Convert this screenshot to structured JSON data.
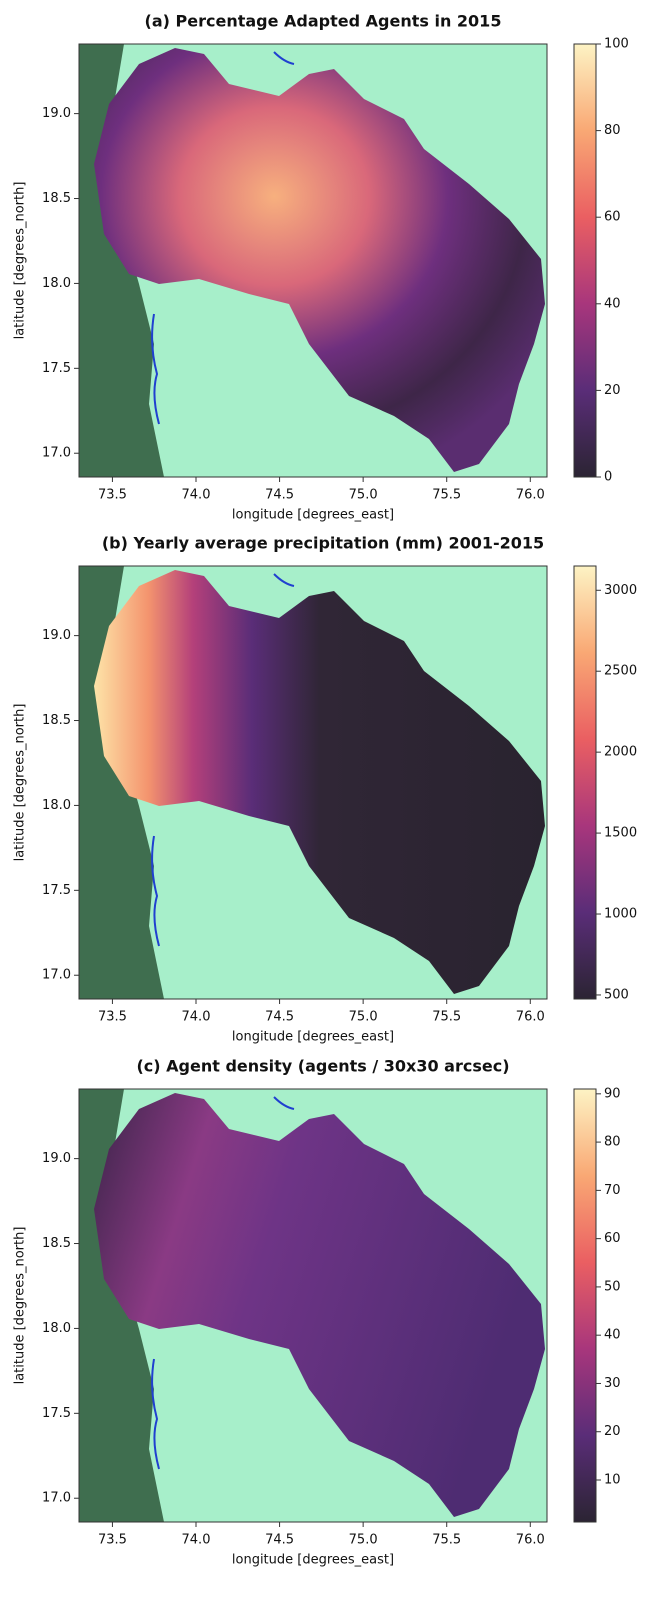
{
  "chart_data": [
    {
      "type": "map",
      "title": "(a) Percentage Adapted Agents in 2015",
      "x_label": "longitude [degrees_east]",
      "y_label": "latitude [degrees_north]",
      "xlim": [
        73.3,
        76.1
      ],
      "ylim": [
        16.86,
        19.41
      ],
      "xticks": [
        73.5,
        {
          "value": 74,
          "label": "74.0"
        },
        74.5,
        {
          "value": 75,
          "label": "75.0"
        },
        75.5,
        {
          "value": 76,
          "label": "76.0"
        }
      ],
      "yticks": [
        {
          "value": 17,
          "label": "17.0"
        },
        17.5,
        {
          "value": 18,
          "label": "18.0"
        },
        18.5,
        {
          "value": 19,
          "label": "19.0"
        }
      ],
      "colorbar": {
        "lim": [
          0,
          100
        ],
        "ticks": [
          0,
          20,
          40,
          60,
          80,
          100
        ]
      },
      "colormap": [
        "#2b2433",
        "#5a2d78",
        "#a8367c",
        "#ea5f62",
        "#f9a874",
        "#fdf3c4"
      ]
    },
    {
      "type": "map",
      "title": "(b) Yearly average precipitation (mm) 2001-2015",
      "x_label": "longitude [degrees_east]",
      "y_label": "latitude [degrees_north]",
      "xlim": [
        73.3,
        76.1
      ],
      "ylim": [
        16.86,
        19.41
      ],
      "xticks": [
        73.5,
        {
          "value": 74,
          "label": "74.0"
        },
        74.5,
        {
          "value": 75,
          "label": "75.0"
        },
        75.5,
        {
          "value": 76,
          "label": "76.0"
        }
      ],
      "yticks": [
        {
          "value": 17,
          "label": "17.0"
        },
        17.5,
        {
          "value": 18,
          "label": "18.0"
        },
        18.5,
        {
          "value": 19,
          "label": "19.0"
        }
      ],
      "colorbar": {
        "lim": [
          475,
          3150
        ],
        "ticks": [
          500,
          1000,
          1500,
          2000,
          2500,
          3000
        ]
      },
      "colormap": [
        "#2b2433",
        "#5a2d78",
        "#a8367c",
        "#ea5f62",
        "#f9a874",
        "#fdf3c4"
      ]
    },
    {
      "type": "map",
      "title": "(c) Agent density (agents / 30x30 arcsec)",
      "x_label": "longitude [degrees_east]",
      "y_label": "latitude [degrees_north]",
      "xlim": [
        73.3,
        76.1
      ],
      "ylim": [
        16.86,
        19.41
      ],
      "xticks": [
        73.5,
        {
          "value": 74,
          "label": "74.0"
        },
        74.5,
        {
          "value": 75,
          "label": "75.0"
        },
        75.5,
        {
          "value": 76,
          "label": "76.0"
        }
      ],
      "yticks": [
        {
          "value": 17,
          "label": "17.0"
        },
        17.5,
        {
          "value": 18,
          "label": "18.0"
        },
        18.5,
        {
          "value": 19,
          "label": "19.0"
        }
      ],
      "colorbar": {
        "lim": [
          1.3,
          91
        ],
        "ticks": [
          10,
          20,
          30,
          40,
          50,
          60,
          70,
          80,
          90
        ]
      },
      "colormap": [
        "#2b2433",
        "#5a2d78",
        "#a8367c",
        "#ea5f62",
        "#f9a874",
        "#fdf3c4"
      ]
    }
  ]
}
